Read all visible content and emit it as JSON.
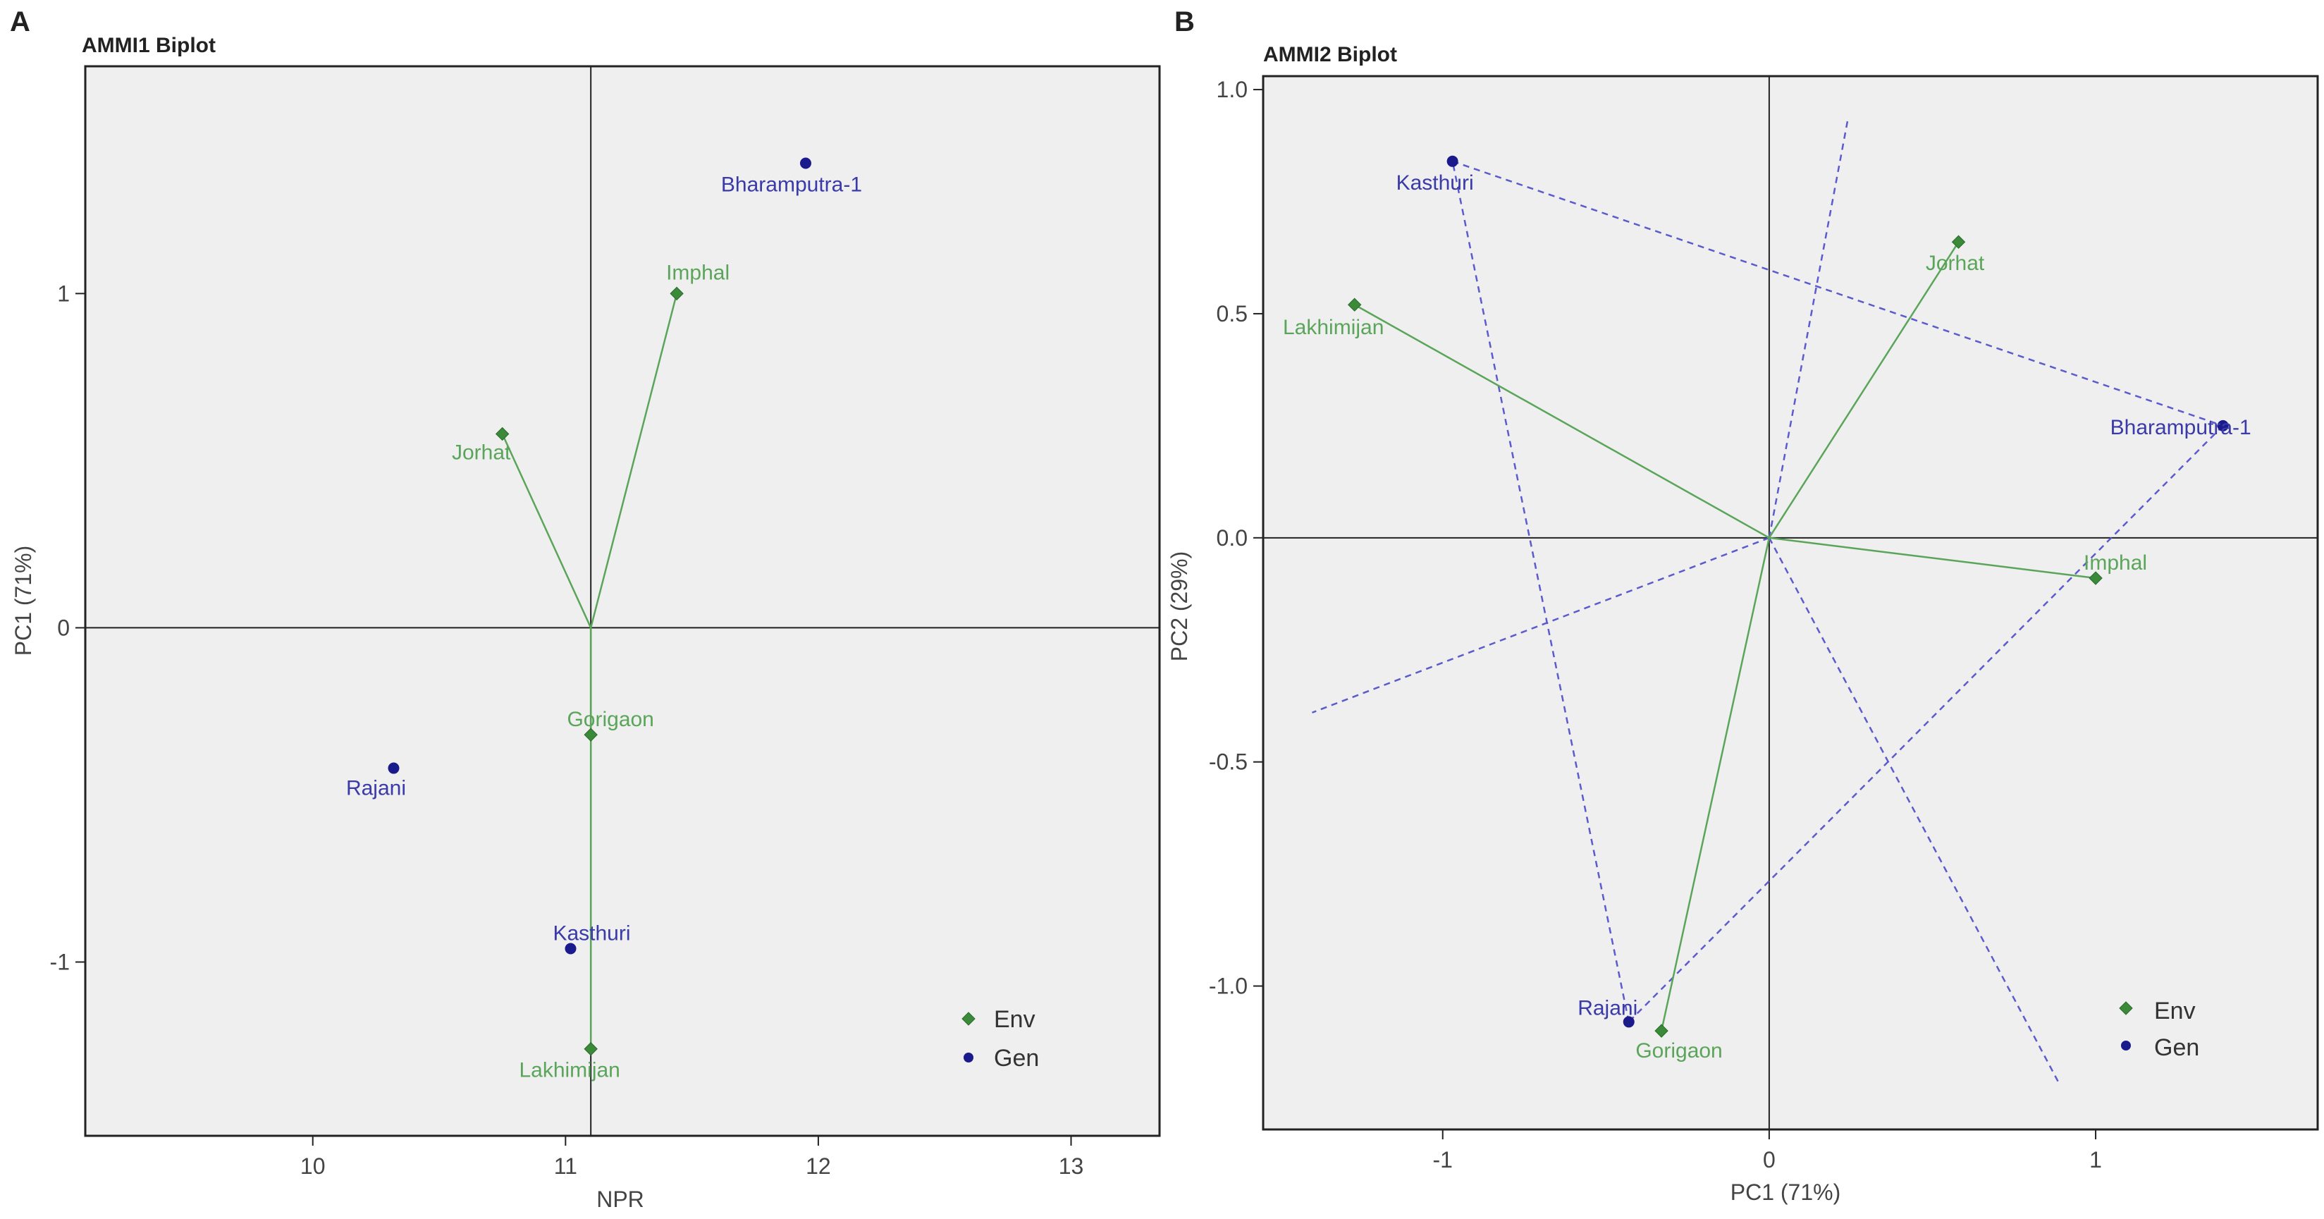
{
  "panel_labels": [
    "A",
    "B"
  ],
  "colors": {
    "env": "#3a8a3a",
    "env_text": "#5aa55a",
    "env_line": "#5aa55a",
    "gen": "#1a1a8c",
    "gen_text": "#3a3aa8",
    "gen_line": "#5b5bcc",
    "plot_bg": "#efefef",
    "axis": "#222222"
  },
  "chart_data": [
    {
      "type": "scatter",
      "title": "AMMI1 Biplot",
      "xlabel": "NPR",
      "ylabel": "PC1 (71%)",
      "xlim": [
        9.1,
        13.35
      ],
      "ylim": [
        -1.52,
        1.68
      ],
      "xticks": [
        10,
        11,
        12,
        13
      ],
      "yticks": [
        -1,
        0,
        1
      ],
      "xtick_labels": [
        "10",
        "11",
        "12",
        "13"
      ],
      "ytick_labels": [
        "-1",
        "0",
        "1"
      ],
      "ref_x": 11.1,
      "ref_y": 0,
      "origin": [
        11.1,
        0
      ],
      "env": [
        {
          "name": "Imphal",
          "x": 11.44,
          "y": 1.0
        },
        {
          "name": "Jorhat",
          "x": 10.75,
          "y": 0.58
        },
        {
          "name": "Gorigaon",
          "x": 11.1,
          "y": -0.32
        },
        {
          "name": "Lakhimijan",
          "x": 11.1,
          "y": -1.26
        }
      ],
      "gen": [
        {
          "name": "Bharamputra-1",
          "x": 11.95,
          "y": 1.39
        },
        {
          "name": "Rajani",
          "x": 10.32,
          "y": -0.42
        },
        {
          "name": "Kasthuri",
          "x": 11.02,
          "y": -0.96
        }
      ],
      "legend": {
        "position": "bottom-right",
        "items": [
          "Env",
          "Gen"
        ]
      }
    },
    {
      "type": "scatter",
      "title": "AMMI2 Biplot",
      "xlabel": "PC1 (71%)",
      "ylabel": "PC2 (29%)",
      "xlim": [
        -1.55,
        1.68
      ],
      "ylim": [
        -1.32,
        1.03
      ],
      "xticks": [
        -1,
        0,
        1
      ],
      "yticks": [
        -1.0,
        -0.5,
        0.0,
        0.5,
        1.0
      ],
      "xtick_labels": [
        "-1",
        "0",
        "1"
      ],
      "ytick_labels": [
        "-1.0",
        "-0.5",
        "0.0",
        "0.5",
        "1.0"
      ],
      "ref_x": 0,
      "ref_y": 0,
      "origin": [
        0,
        0
      ],
      "env": [
        {
          "name": "Jorhat",
          "x": 0.58,
          "y": 0.66
        },
        {
          "name": "Lakhimijan",
          "x": -1.27,
          "y": 0.52
        },
        {
          "name": "Imphal",
          "x": 1.0,
          "y": -0.09
        },
        {
          "name": "Gorigaon",
          "x": -0.33,
          "y": -1.1
        }
      ],
      "gen": [
        {
          "name": "Kasthuri",
          "x": -0.97,
          "y": 0.84
        },
        {
          "name": "Bharamputra-1",
          "x": 1.39,
          "y": 0.25
        },
        {
          "name": "Rajani",
          "x": -0.43,
          "y": -1.08
        }
      ],
      "hull": [
        "Kasthuri",
        "Bharamputra-1",
        "Rajani"
      ],
      "polygon_perpendiculars": [
        {
          "from": [
            0,
            0
          ],
          "to": [
            0.24,
            0.93
          ]
        },
        {
          "from": [
            0,
            0
          ],
          "to": [
            -1.4,
            -0.39
          ]
        },
        {
          "from": [
            0,
            0
          ],
          "to": [
            0.89,
            -1.22
          ]
        }
      ],
      "legend": {
        "position": "bottom-right",
        "items": [
          "Env",
          "Gen"
        ]
      }
    }
  ]
}
